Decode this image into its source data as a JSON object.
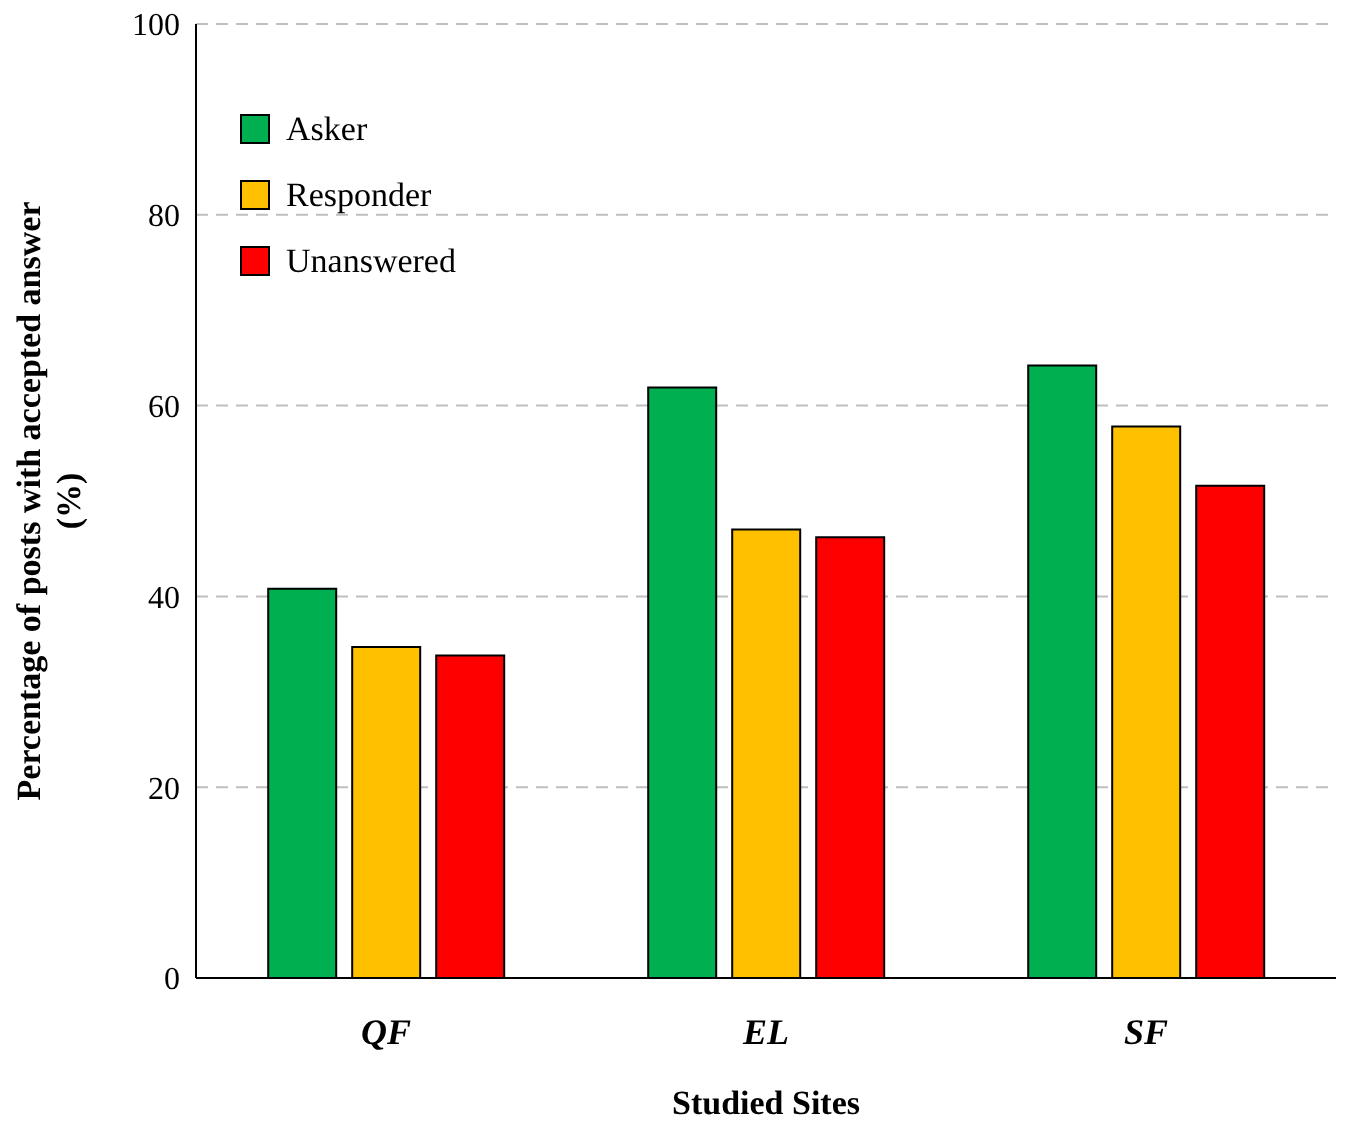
{
  "chart_data": {
    "type": "bar",
    "xlabel": "Studied Sites",
    "ylabel": "Percentage of posts with accepted answer (%)",
    "categories": [
      "QF",
      "EL",
      "SF"
    ],
    "series": [
      {
        "name": "Asker",
        "color": "#00b050",
        "values": [
          40.8,
          61.9,
          64.2
        ]
      },
      {
        "name": "Responder",
        "color": "#ffc000",
        "values": [
          34.7,
          47.0,
          57.8
        ]
      },
      {
        "name": "Unanswered",
        "color": "#ff0000",
        "values": [
          33.8,
          46.2,
          51.6
        ]
      }
    ],
    "ylim": [
      0,
      100
    ],
    "yticks": [
      0,
      20,
      40,
      60,
      80,
      100
    ],
    "grid": "y",
    "legend": "top left"
  }
}
